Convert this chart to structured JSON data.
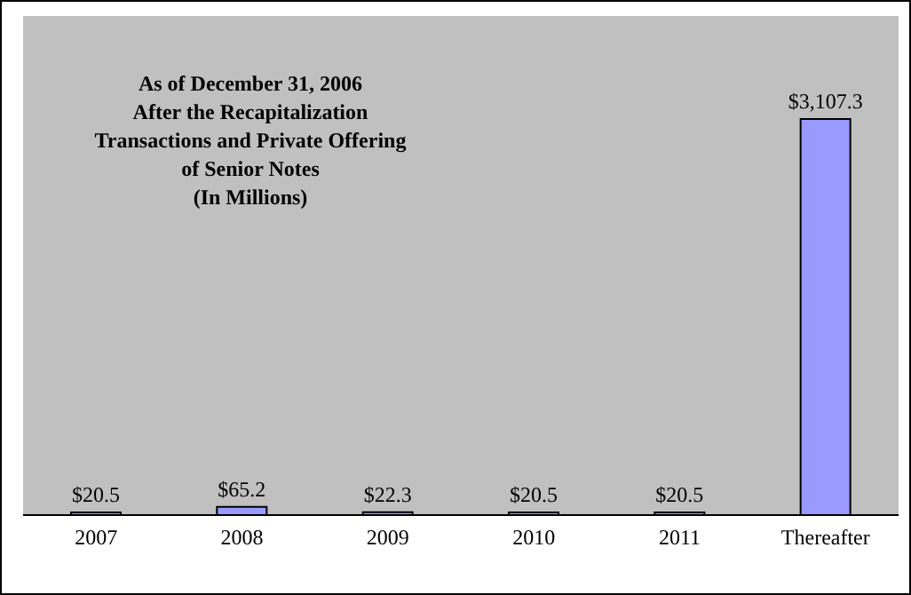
{
  "chart_data": {
    "type": "bar",
    "title": "As of December 31, 2006\nAfter the Recapitalization\nTransactions and Private Offering\nof Senior Notes\n(In Millions)",
    "categories": [
      "2007",
      "2008",
      "2009",
      "2010",
      "2011",
      "Thereafter"
    ],
    "values": [
      20.5,
      65.2,
      22.3,
      20.5,
      20.5,
      3107.3
    ],
    "value_labels": [
      "$20.5",
      "$65.2",
      "$22.3",
      "$20.5",
      "$20.5",
      "$3,107.3"
    ],
    "color": "#9999ff"
  }
}
